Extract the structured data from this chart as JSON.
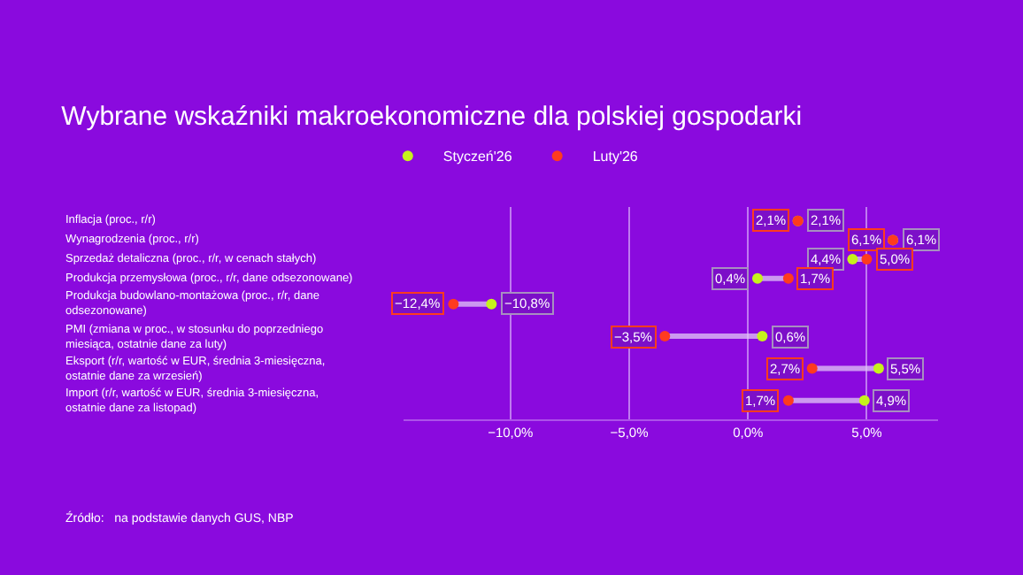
{
  "chart_data": {
    "type": "scatter",
    "orientation": "horizontal",
    "title": "Wybrane wskaźniki makroekonomiczne dla polskiej gospodarki",
    "categories": [
      "Inflacja (proc., r/r)",
      "Wynagrodzenia (proc., r/r)",
      "Sprzedaż detaliczna (proc., r/r, w cenach stałych)",
      "Produkcja przemysłowa (proc., r/r, dane odsezonowane)",
      "Produkcja budowlano-montażowa (proc., r/r, dane odsezonowane)",
      "PMI (zmiana w proc., w stosunku do poprzedniego miesiąca, ostatnie dane za luty)",
      "Eksport (r/r, wartość w EUR, średnia 3-miesięczna, ostatnie dane za wrzesień)",
      "Import (r/r, wartość w EUR, średnia 3-miesięczna, ostatnie dane za listopad)"
    ],
    "series": [
      {
        "name": "Styczeń'26",
        "color": "#c6f21c",
        "values": [
          2.1,
          6.1,
          4.4,
          0.4,
          -10.8,
          0.6,
          5.5,
          4.9
        ],
        "value_labels": [
          "2,1%",
          "6,1%",
          "4,4%",
          "0,4%",
          "−10,8%",
          "0,6%",
          "5,5%",
          "4,9%"
        ]
      },
      {
        "name": "Luty'26",
        "color": "#ff3b1f",
        "values": [
          2.1,
          6.1,
          5.0,
          1.7,
          -12.4,
          -3.5,
          2.7,
          1.7
        ],
        "value_labels": [
          "2,1%",
          "6,1%",
          "5,0%",
          "1,7%",
          "−12,4%",
          "−3,5%",
          "2,7%",
          "1,7%"
        ]
      }
    ],
    "xlim": [
      -14.5,
      8
    ],
    "xticks": [
      {
        "value": -10,
        "label": "−10,0%"
      },
      {
        "value": -5,
        "label": "−5,0%"
      },
      {
        "value": 0,
        "label": "0,0%"
      },
      {
        "value": 5,
        "label": "5,0%"
      }
    ],
    "grid": "x",
    "legend": "top",
    "marker": "circle",
    "annotations": [
      "Źródło:   na podstawie danych GUS, NBP"
    ]
  }
}
